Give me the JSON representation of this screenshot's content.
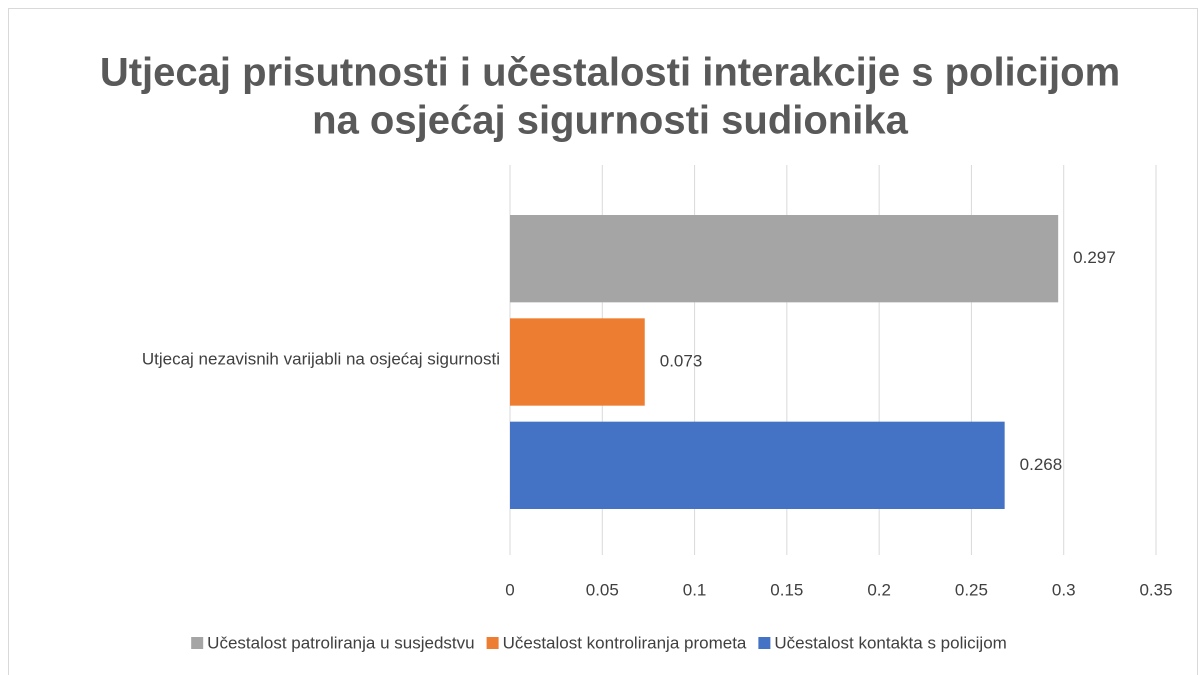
{
  "chart_data": {
    "type": "bar",
    "orientation": "horizontal",
    "title": [
      "Utjecaj prisutnosti i učestalosti interakcije s policijom",
      "na osjećaj sigurnosti sudionika"
    ],
    "categories": [
      "Utjecaj nezavisnih varijabli na osjećaj sigurnosti"
    ],
    "series": [
      {
        "name": "Učestalost patroliranja u susjedstvu",
        "color": "#a5a5a5",
        "values": [
          0.297
        ]
      },
      {
        "name": "Učestalost kontroliranja prometa",
        "color": "#ed7d31",
        "values": [
          0.073
        ]
      },
      {
        "name": "Učestalost kontakta s policijom",
        "color": "#4472c4",
        "values": [
          0.268
        ]
      }
    ],
    "xlim": [
      0,
      0.35
    ],
    "xticks": [
      0,
      0.05,
      0.1,
      0.15,
      0.2,
      0.25,
      0.3,
      0.35
    ],
    "grid": true,
    "legend": "bottom"
  }
}
